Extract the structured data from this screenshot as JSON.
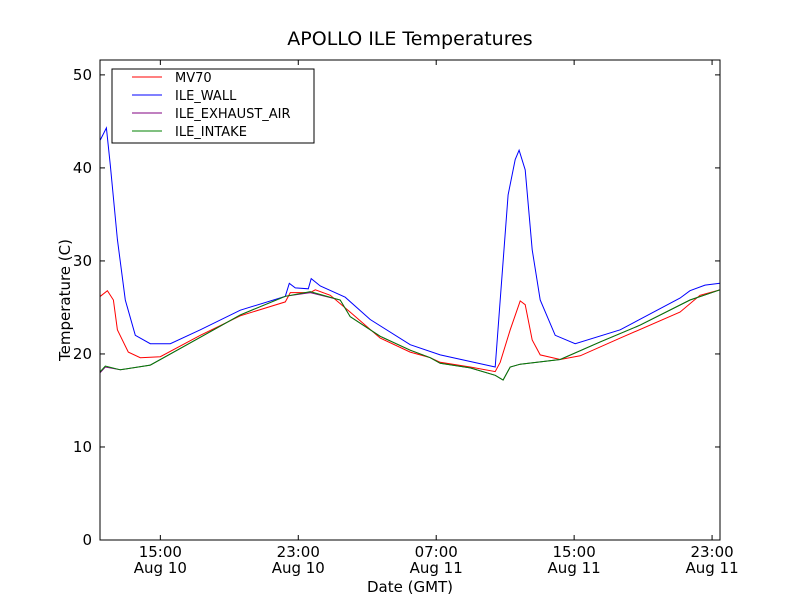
{
  "chart_data": {
    "type": "line",
    "title": "APOLLO ILE Temperatures",
    "xlabel": "Date (GMT)",
    "ylabel": "Temperature (C)",
    "x_units": "hours since Aug 10 00:00 GMT",
    "xlim": [
      11.5,
      47.46
    ],
    "ylim": [
      0,
      51.6
    ],
    "grid": false,
    "legend_position": "top-left",
    "x_ticks": [
      {
        "value": 15,
        "label": "15:00",
        "sublabel": "Aug 10"
      },
      {
        "value": 23,
        "label": "23:00",
        "sublabel": "Aug 10"
      },
      {
        "value": 31,
        "label": "07:00",
        "sublabel": "Aug 11"
      },
      {
        "value": 39,
        "label": "15:00",
        "sublabel": "Aug 11"
      },
      {
        "value": 47,
        "label": "23:00",
        "sublabel": "Aug 11"
      }
    ],
    "y_ticks": [
      0,
      10,
      20,
      30,
      40,
      50
    ],
    "series": [
      {
        "name": "MV70",
        "color": "#ff0000",
        "points": [
          [
            11.52,
            26.2
          ],
          [
            11.93,
            26.8
          ],
          [
            12.28,
            25.8
          ],
          [
            12.51,
            22.6
          ],
          [
            13.14,
            20.2
          ],
          [
            13.84,
            19.6
          ],
          [
            15,
            19.7
          ],
          [
            17.32,
            22.0
          ],
          [
            19.64,
            24.1
          ],
          [
            22.25,
            25.6
          ],
          [
            22.54,
            26.6
          ],
          [
            23.7,
            26.6
          ],
          [
            23.99,
            26.9
          ],
          [
            24.86,
            26.3
          ],
          [
            26.01,
            24.5
          ],
          [
            27.75,
            21.7
          ],
          [
            29.49,
            20.2
          ],
          [
            30.65,
            19.6
          ],
          [
            31.23,
            19.1
          ],
          [
            32.97,
            18.6
          ],
          [
            34.42,
            18.1
          ],
          [
            34.71,
            19.1
          ],
          [
            35.29,
            22.6
          ],
          [
            35.87,
            25.7
          ],
          [
            36.16,
            25.3
          ],
          [
            36.57,
            21.5
          ],
          [
            37.03,
            19.9
          ],
          [
            38.19,
            19.4
          ],
          [
            39.35,
            19.8
          ],
          [
            41.67,
            21.7
          ],
          [
            45.14,
            24.5
          ],
          [
            46.3,
            26.3
          ],
          [
            47.46,
            26.9
          ]
        ]
      },
      {
        "name": "ILE_WALL",
        "color": "#0000ff",
        "points": [
          [
            11.52,
            43.0
          ],
          [
            11.87,
            44.3
          ],
          [
            12.1,
            40.3
          ],
          [
            12.51,
            32.3
          ],
          [
            12.97,
            25.8
          ],
          [
            13.55,
            22.0
          ],
          [
            14.42,
            21.1
          ],
          [
            15.58,
            21.1
          ],
          [
            17.32,
            22.6
          ],
          [
            19.64,
            24.7
          ],
          [
            22.25,
            26.2
          ],
          [
            22.48,
            27.6
          ],
          [
            22.83,
            27.1
          ],
          [
            23.58,
            27.0
          ],
          [
            23.75,
            28.1
          ],
          [
            24.28,
            27.3
          ],
          [
            25.72,
            26.1
          ],
          [
            27.17,
            23.7
          ],
          [
            29.49,
            21.0
          ],
          [
            31.23,
            19.9
          ],
          [
            34.42,
            18.6
          ],
          [
            34.71,
            25.8
          ],
          [
            35.17,
            37.1
          ],
          [
            35.58,
            40.9
          ],
          [
            35.81,
            41.9
          ],
          [
            36.16,
            39.8
          ],
          [
            36.57,
            31.2
          ],
          [
            37.03,
            25.8
          ],
          [
            37.9,
            22.0
          ],
          [
            39.06,
            21.1
          ],
          [
            41.67,
            22.6
          ],
          [
            45.14,
            26.0
          ],
          [
            45.72,
            26.8
          ],
          [
            46.59,
            27.4
          ],
          [
            47.46,
            27.6
          ]
        ]
      },
      {
        "name": "ILE_EXHAUST_AIR",
        "color": "#800080",
        "points": [
          [
            11.52,
            18.0
          ],
          [
            11.81,
            18.6
          ],
          [
            12.68,
            18.3
          ],
          [
            14.42,
            18.8
          ],
          [
            16.16,
            20.6
          ],
          [
            19.64,
            24.2
          ],
          [
            22.25,
            26.2
          ],
          [
            23.7,
            26.6
          ],
          [
            25.43,
            25.8
          ],
          [
            26.01,
            24.0
          ],
          [
            27.75,
            21.9
          ],
          [
            29.49,
            20.4
          ],
          [
            30.65,
            19.6
          ],
          [
            31.23,
            19.0
          ],
          [
            32.97,
            18.5
          ],
          [
            34.42,
            17.7
          ],
          [
            34.88,
            17.2
          ],
          [
            35.29,
            18.6
          ],
          [
            35.87,
            18.9
          ],
          [
            38.19,
            19.4
          ],
          [
            40.51,
            21.3
          ],
          [
            42.83,
            23.1
          ],
          [
            45.72,
            25.8
          ],
          [
            47.46,
            26.9
          ]
        ]
      },
      {
        "name": "ILE_INTAKE",
        "color": "#008000",
        "points": [
          [
            11.52,
            18.1
          ],
          [
            11.81,
            18.7
          ],
          [
            12.68,
            18.3
          ],
          [
            14.42,
            18.8
          ],
          [
            16.16,
            20.6
          ],
          [
            19.64,
            24.2
          ],
          [
            22.25,
            26.2
          ],
          [
            23.7,
            26.7
          ],
          [
            25.43,
            25.8
          ],
          [
            26.01,
            24.0
          ],
          [
            27.75,
            21.9
          ],
          [
            29.49,
            20.4
          ],
          [
            30.65,
            19.6
          ],
          [
            31.23,
            19.0
          ],
          [
            32.97,
            18.5
          ],
          [
            34.42,
            17.7
          ],
          [
            34.88,
            17.2
          ],
          [
            35.29,
            18.6
          ],
          [
            35.87,
            18.9
          ],
          [
            38.19,
            19.4
          ],
          [
            40.51,
            21.3
          ],
          [
            42.83,
            23.1
          ],
          [
            45.72,
            25.8
          ],
          [
            47.46,
            26.9
          ]
        ]
      }
    ]
  }
}
